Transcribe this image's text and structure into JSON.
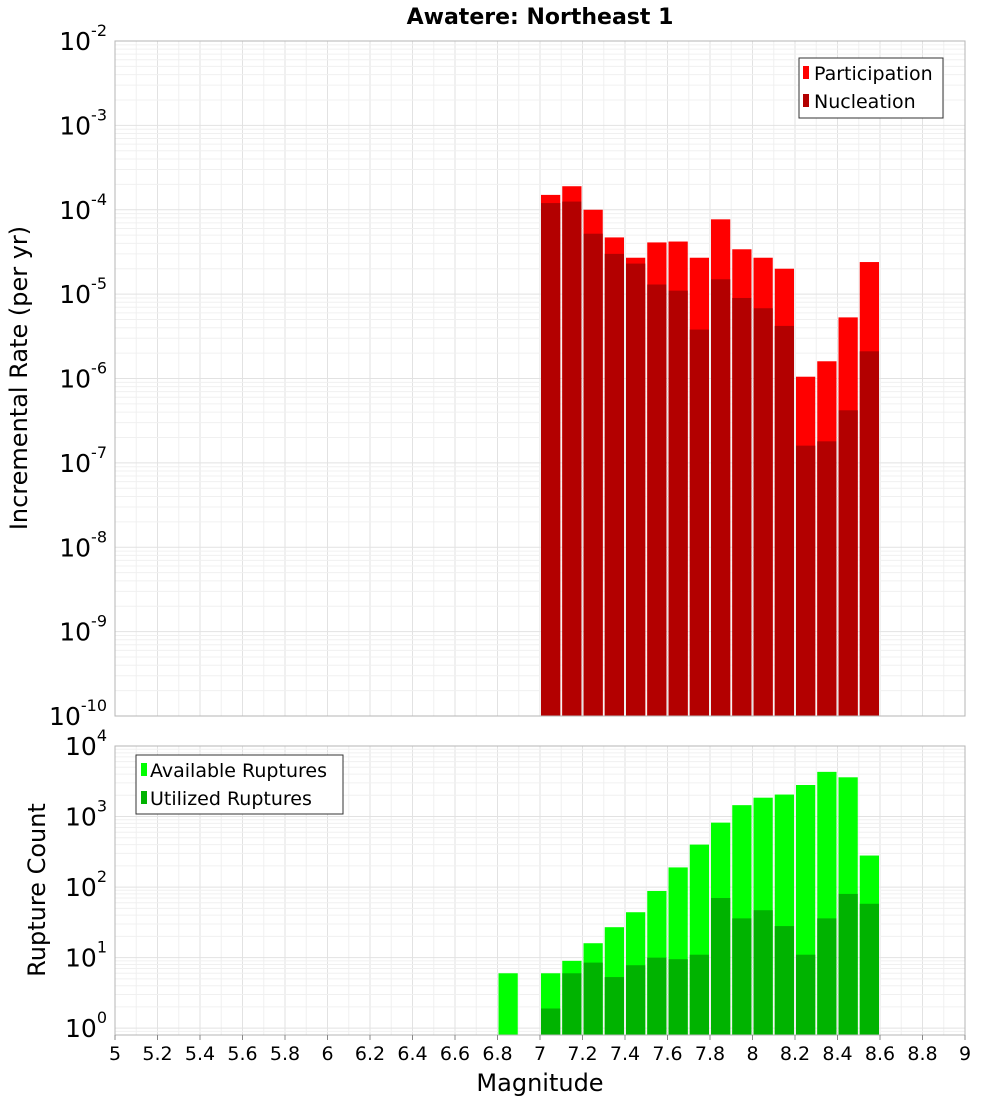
{
  "chart_data": [
    {
      "type": "bar",
      "title": "Awatere: Northeast 1",
      "ylabel": "Incremental Rate (per yr)",
      "xlabel": "",
      "yscale": "log",
      "ylim": [
        1e-10,
        0.01
      ],
      "xlim": [
        5,
        9
      ],
      "legend": {
        "placement": "top-right",
        "entries": [
          "Participation",
          "Nucleation"
        ]
      },
      "grid": true,
      "bin_width": 0.1,
      "x": [
        7.05,
        7.15,
        7.25,
        7.35,
        7.45,
        7.55,
        7.65,
        7.75,
        7.85,
        7.95,
        8.05,
        8.15,
        8.25,
        8.35,
        8.45,
        8.55
      ],
      "series": [
        {
          "name": "Participation",
          "color": "#ff0000",
          "values": [
            0.00015,
            0.00019,
            0.0001,
            4.7e-05,
            2.7e-05,
            4.1e-05,
            4.2e-05,
            2.7e-05,
            7.7e-05,
            3.4e-05,
            2.7e-05,
            2e-05,
            1.05e-06,
            1.6e-06,
            5.3e-06,
            2.4e-05
          ]
        },
        {
          "name": "Nucleation",
          "color": "#b30000",
          "values": [
            0.00012,
            0.000125,
            5.2e-05,
            3e-05,
            2.3e-05,
            1.3e-05,
            1.1e-05,
            3.8e-06,
            1.5e-05,
            9e-06,
            6.8e-06,
            4.2e-06,
            1.6e-07,
            1.8e-07,
            4.2e-07,
            2.1e-06
          ]
        }
      ],
      "yticks": [
        {
          "base": "10",
          "exp": "-2"
        },
        {
          "base": "10",
          "exp": "-3"
        },
        {
          "base": "10",
          "exp": "-4"
        },
        {
          "base": "10",
          "exp": "-5"
        },
        {
          "base": "10",
          "exp": "-6"
        },
        {
          "base": "10",
          "exp": "-7"
        },
        {
          "base": "10",
          "exp": "-8"
        },
        {
          "base": "10",
          "exp": "-9"
        },
        {
          "base": "10",
          "exp": "-10"
        }
      ]
    },
    {
      "type": "bar",
      "title": "",
      "ylabel": "Rupture Count",
      "xlabel": "Magnitude",
      "yscale": "log",
      "ylim": [
        0.8,
        10000.0
      ],
      "xlim": [
        5,
        9
      ],
      "legend": {
        "placement": "top-left",
        "entries": [
          "Available Ruptures",
          "Utilized Ruptures"
        ]
      },
      "grid": true,
      "bin_width": 0.1,
      "x": [
        6.85,
        7.05,
        7.15,
        7.25,
        7.35,
        7.45,
        7.55,
        7.65,
        7.75,
        7.85,
        7.95,
        8.05,
        8.15,
        8.25,
        8.35,
        8.45,
        8.55
      ],
      "series": [
        {
          "name": "Available Ruptures",
          "color": "#00ff00",
          "values": [
            6,
            6,
            9,
            16,
            27,
            44,
            88,
            190,
            400,
            820,
            1450,
            1850,
            2050,
            2800,
            4300,
            3600,
            280
          ]
        },
        {
          "name": "Utilized Ruptures",
          "color": "#00b300",
          "values": [
            0,
            1.9,
            6,
            8.5,
            5.3,
            7.8,
            10,
            9.5,
            11,
            70,
            36,
            47,
            28,
            11,
            36,
            80,
            58
          ]
        }
      ],
      "yticks": [
        {
          "base": "10",
          "exp": "4"
        },
        {
          "base": "10",
          "exp": "3"
        },
        {
          "base": "10",
          "exp": "2"
        },
        {
          "base": "10",
          "exp": "1"
        },
        {
          "base": "10",
          "exp": "0"
        }
      ],
      "xticks": [
        "5",
        "5.2",
        "5.4",
        "5.6",
        "5.8",
        "6",
        "6.2",
        "6.4",
        "6.6",
        "6.8",
        "7",
        "7.2",
        "7.4",
        "7.6",
        "7.8",
        "8",
        "8.2",
        "8.4",
        "8.6",
        "8.8",
        "9"
      ]
    }
  ]
}
